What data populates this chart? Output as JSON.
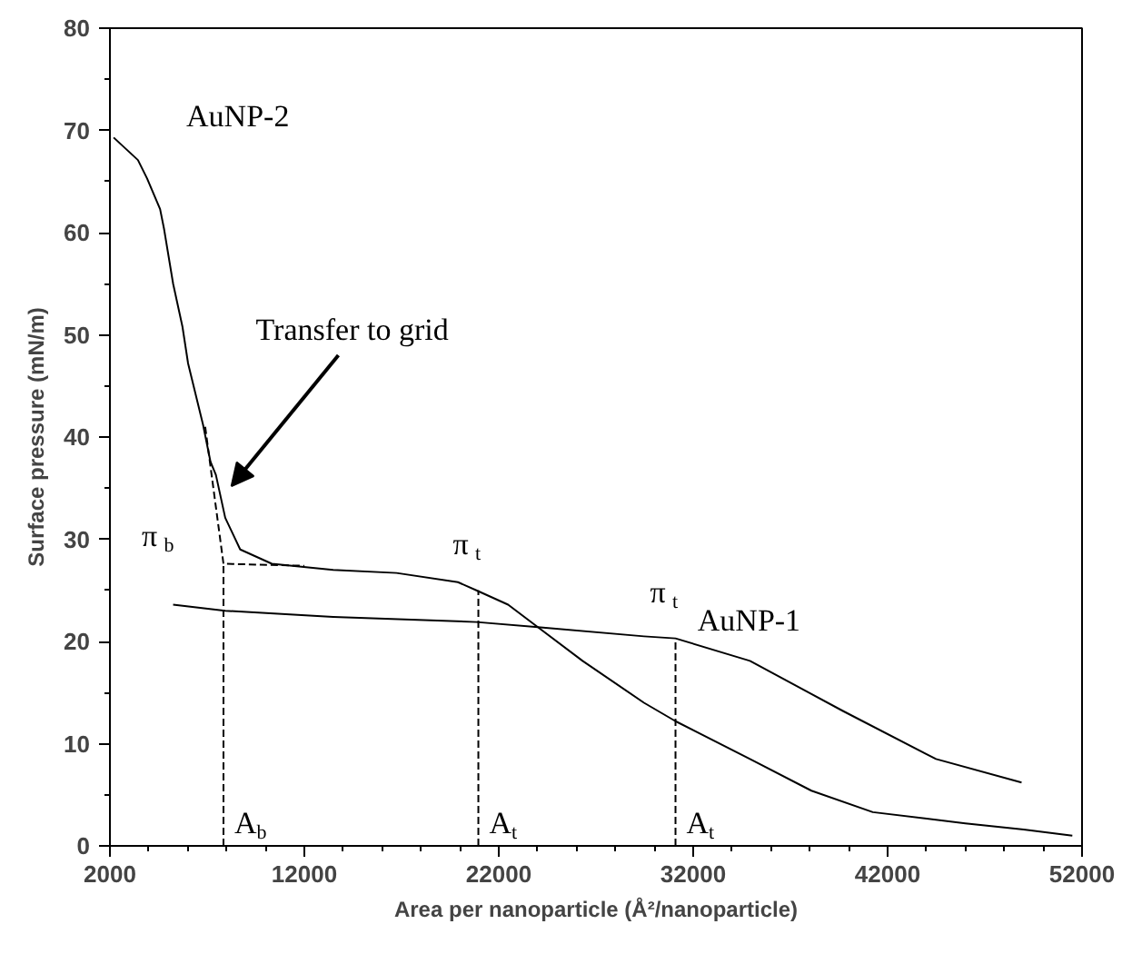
{
  "chart_data": {
    "type": "line",
    "xlabel": "Area per nanoparticle (Å²/nanoparticle)",
    "ylabel": "Surface pressure (mN/m)",
    "xlim": [
      2000,
      52000
    ],
    "ylim": [
      0,
      80
    ],
    "xticks": [
      2000,
      12000,
      22000,
      32000,
      42000,
      52000
    ],
    "yticks": [
      0,
      10,
      20,
      30,
      40,
      50,
      60,
      70,
      80
    ],
    "grid": false,
    "line_style": "solid",
    "marker": "none",
    "series": [
      {
        "name": "AuNP-2",
        "color": "#000000",
        "x": [
          2190,
          3440,
          3910,
          4580,
          4780,
          5250,
          5730,
          6020,
          6790,
          7170,
          7450,
          7930,
          8700,
          10330,
          13480,
          16740,
          19900,
          20850,
          22480,
          24010,
          26310,
          29470,
          31090,
          34920,
          38080,
          41240,
          46000,
          49000,
          51500
        ],
        "values": [
          69.3,
          67.1,
          65.3,
          62.3,
          60.4,
          55,
          50.8,
          47.2,
          41.2,
          37.6,
          36.3,
          32.1,
          29.0,
          27.6,
          27.0,
          26.7,
          25.8,
          25.0,
          23.6,
          21.4,
          18.1,
          14.0,
          12.2,
          8.5,
          5.4,
          3.3,
          2.2,
          1.6,
          1.0
        ]
      },
      {
        "name": "AuNP-1",
        "color": "#000000",
        "x": [
          5250,
          7930,
          13480,
          20850,
          24010,
          29470,
          31090,
          34920,
          39700,
          44490,
          48890
        ],
        "values": [
          23.6,
          23.0,
          22.4,
          21.9,
          21.4,
          20.5,
          20.3,
          18.1,
          13.2,
          8.5,
          6.2
        ]
      },
      {
        "color": "#000000",
        "line_style": "dashed",
        "x": [
          6900,
          7840,
          12000
        ],
        "values": [
          41,
          27.6,
          27.4
        ]
      },
      {
        "color": "#000000",
        "line_style": "dashed",
        "x": [
          7840,
          7840
        ],
        "values": [
          0,
          27.6
        ]
      },
      {
        "color": "#000000",
        "line_style": "dashed",
        "x": [
          20950,
          20950
        ],
        "values": [
          0,
          25.0
        ]
      },
      {
        "color": "#000000",
        "line_style": "dashed",
        "x": [
          31090,
          31090
        ],
        "values": [
          0,
          20.3
        ]
      }
    ],
    "annotations": [
      "Transfer to grid",
      {
        "text": "π$_{b}$",
        "x": 7840,
        "y": 27.6
      },
      {
        "text": "π$_{t}$",
        "x": 20950,
        "y": 25.0
      },
      {
        "text": "π$_{t}$",
        "x": 31090,
        "y": 20.3
      },
      {
        "text": "A$_{b}$",
        "x": 7840,
        "y": 0
      },
      {
        "text": "A$_{t}$",
        "x": 20950,
        "y": 0
      },
      {
        "text": "A$_{t}$",
        "x": 31090,
        "y": 0
      }
    ]
  }
}
